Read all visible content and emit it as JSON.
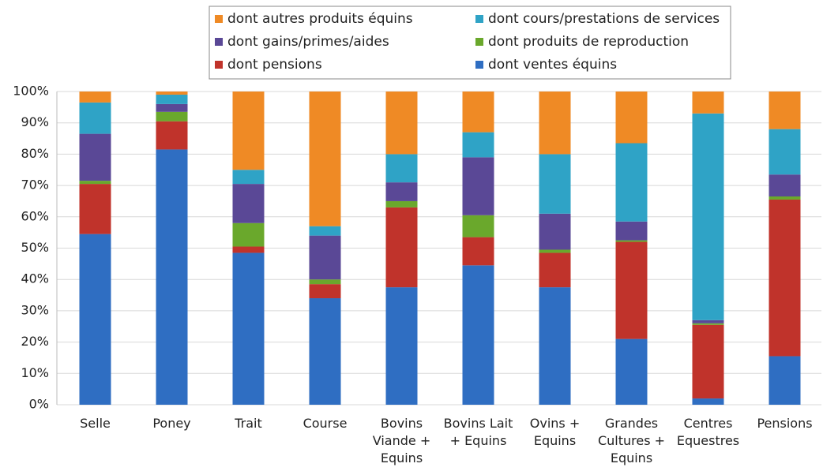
{
  "chart_data": {
    "type": "stacked_bar",
    "categories": [
      "Selle",
      "Poney",
      "Trait",
      "Course",
      "Bovins\nViande +\nEquins",
      "Bovins Lait\n+ Equins",
      "Ovins +\nEquins",
      "Grandes\nCultures +\nEquins",
      "Centres\nEquestres",
      "Pensions"
    ],
    "series": [
      {
        "name": "dont ventes équins",
        "color": "#2f6ec2",
        "values": [
          54.5,
          81.5,
          48.5,
          34,
          37.5,
          44.5,
          37.5,
          21,
          2,
          15.5
        ]
      },
      {
        "name": "dont pensions",
        "color": "#c0332b",
        "values": [
          16,
          9,
          2,
          4.5,
          25.5,
          9,
          11,
          31,
          23.5,
          50
        ]
      },
      {
        "name": "dont produits de reproduction",
        "color": "#6aa82c",
        "values": [
          1,
          3,
          7.5,
          1.5,
          2,
          7,
          1,
          0.5,
          0.5,
          1
        ]
      },
      {
        "name": "dont gains/primes/aides",
        "color": "#5a4896",
        "values": [
          15,
          2.5,
          12.5,
          14,
          6,
          18.5,
          11.5,
          6,
          1,
          7
        ]
      },
      {
        "name": "dont cours/prestations de services",
        "color": "#2fa3c6",
        "values": [
          10,
          3,
          4.5,
          3,
          9,
          8,
          19,
          25,
          66,
          14.5
        ]
      },
      {
        "name": "dont autres produits équins",
        "color": "#ef8a25",
        "values": [
          3.5,
          1,
          25,
          43,
          20,
          13,
          20,
          16.5,
          7,
          12
        ]
      }
    ],
    "ylim": [
      0,
      100
    ],
    "yticks": [
      {
        "value": 0,
        "label": "0%"
      },
      {
        "value": 10,
        "label": "10%"
      },
      {
        "value": 20,
        "label": "20%"
      },
      {
        "value": 30,
        "label": "30%"
      },
      {
        "value": 40,
        "label": "40%"
      },
      {
        "value": 50,
        "label": "50%"
      },
      {
        "value": 60,
        "label": "60%"
      },
      {
        "value": 70,
        "label": "70%"
      },
      {
        "value": 80,
        "label": "80%"
      },
      {
        "value": 90,
        "label": "90%"
      },
      {
        "value": 100,
        "label": "100%"
      }
    ],
    "grid": true
  }
}
